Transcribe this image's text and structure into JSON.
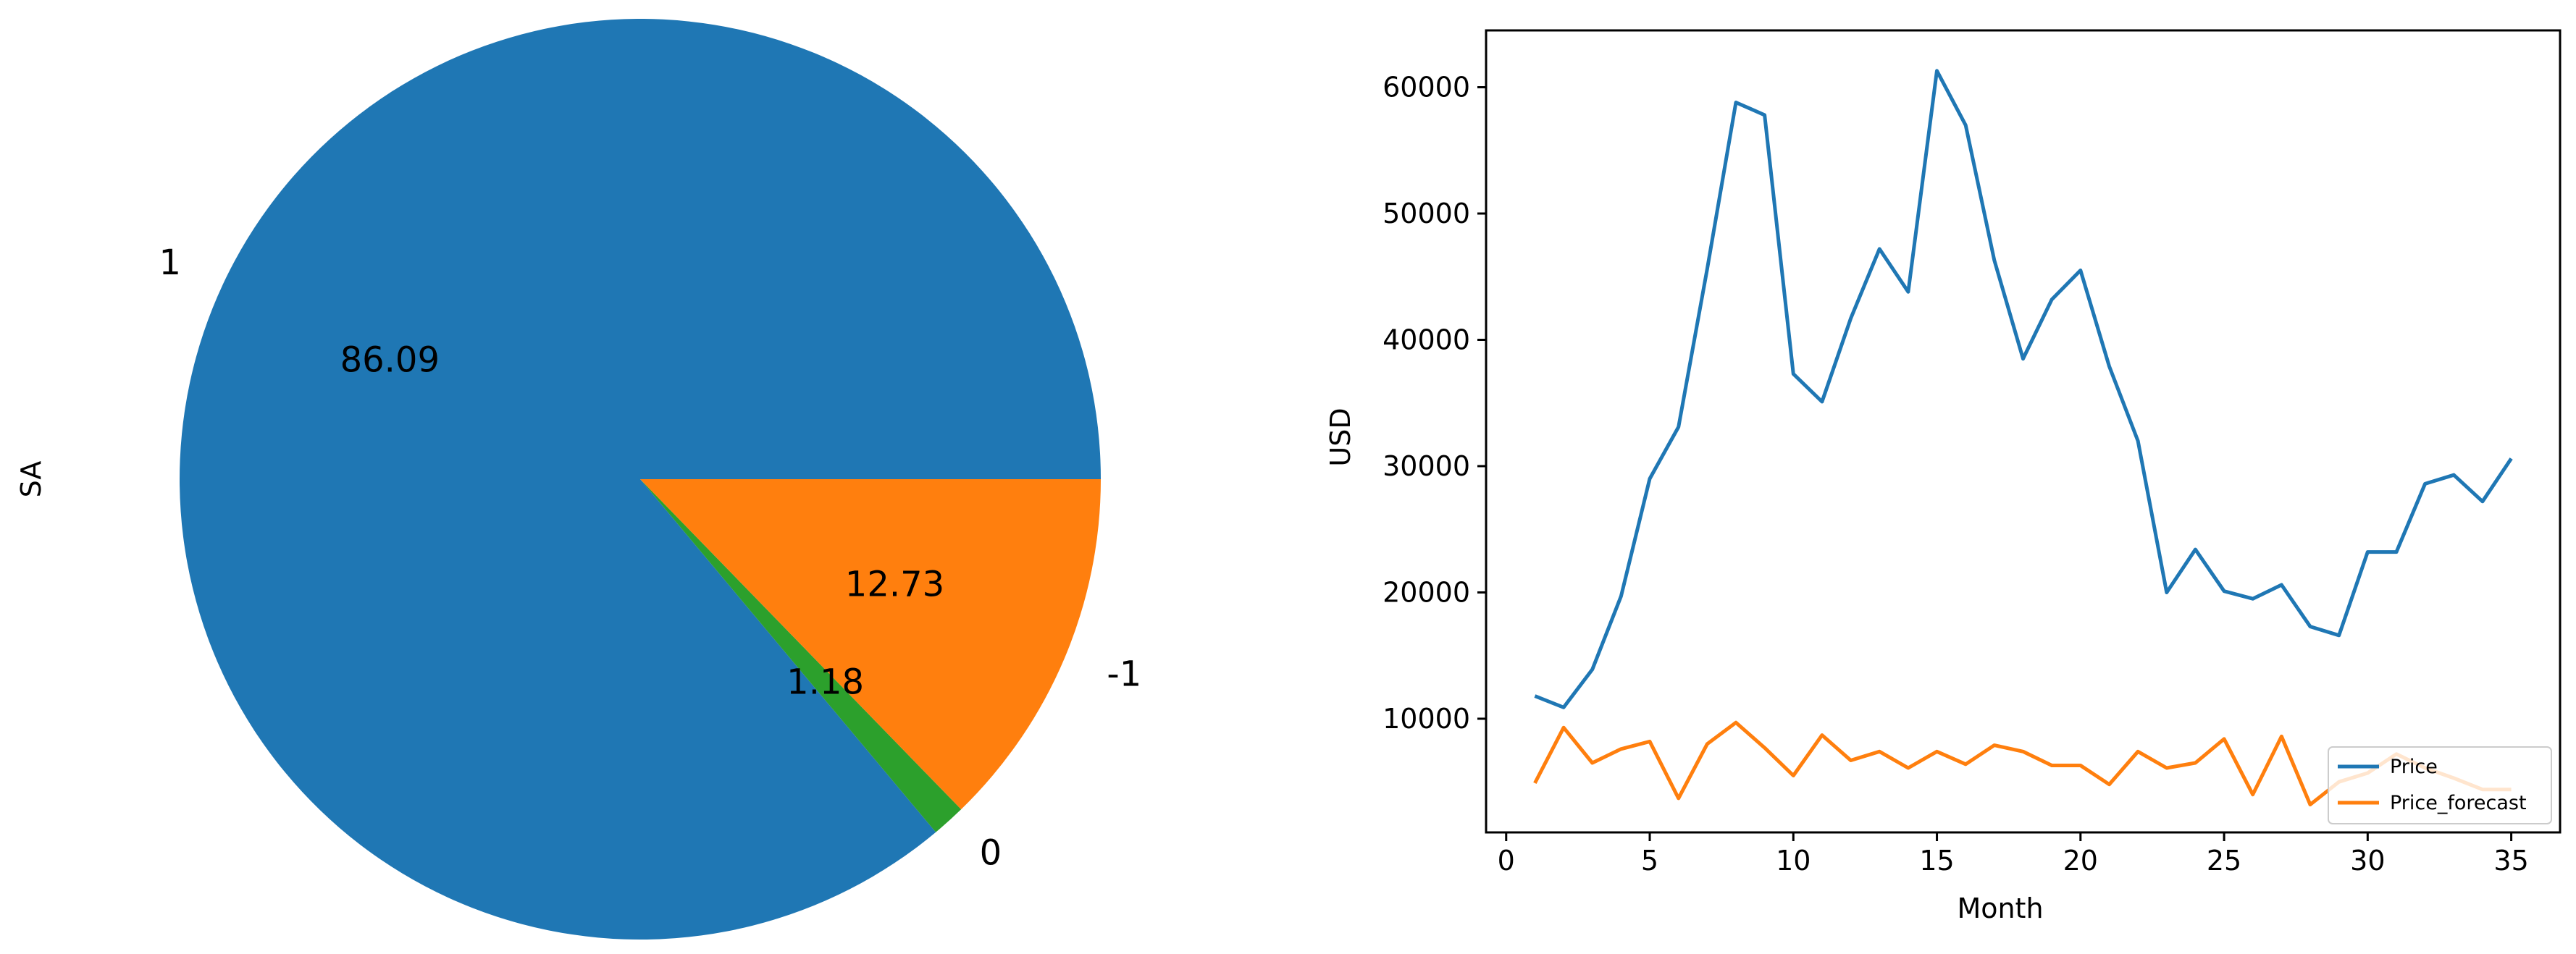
{
  "chart_data": [
    {
      "type": "pie",
      "ylabel": "SA",
      "labels": [
        "1",
        "0",
        "-1"
      ],
      "values": [
        86.09,
        1.18,
        12.73
      ],
      "autopct_labels": [
        "86.09",
        "1.18",
        "12.73"
      ],
      "colors": [
        "#1f77b4",
        "#2ca02c",
        "#ff7f0e"
      ]
    },
    {
      "type": "line",
      "xlabel": "Month",
      "ylabel": "USD",
      "xlim": [
        -0.7,
        36.7
      ],
      "ylim": [
        1000,
        64500
      ],
      "xticks": [
        0,
        5,
        10,
        15,
        20,
        25,
        30,
        35
      ],
      "xtick_labels": [
        "0",
        "5",
        "10",
        "15",
        "20",
        "25",
        "30",
        "35"
      ],
      "yticks": [
        10000,
        20000,
        30000,
        40000,
        50000,
        60000
      ],
      "ytick_labels": [
        "10000",
        "20000",
        "30000",
        "40000",
        "50000",
        "60000"
      ],
      "grid": false,
      "legend_position": "lower-right",
      "x": [
        1,
        2,
        3,
        4,
        5,
        6,
        7,
        8,
        9,
        10,
        11,
        12,
        13,
        14,
        15,
        16,
        17,
        18,
        19,
        20,
        21,
        22,
        23,
        24,
        25,
        26,
        27,
        28,
        29,
        30,
        31,
        32,
        33,
        34,
        35
      ],
      "series": [
        {
          "name": "Price",
          "color": "#1f77b4",
          "values": [
            11800,
            10900,
            13900,
            19700,
            29000,
            33100,
            45600,
            58800,
            57800,
            37300,
            35100,
            41700,
            47200,
            43800,
            61300,
            57000,
            46300,
            38500,
            43200,
            45500,
            37900,
            32000,
            20000,
            23400,
            20100,
            19500,
            20600,
            17300,
            16600,
            23200,
            23200,
            28600,
            29300,
            27200,
            30600
          ]
        },
        {
          "name": "Price_forecast",
          "color": "#ff7f0e",
          "values": [
            4900,
            9300,
            6500,
            7600,
            8200,
            3700,
            8000,
            9700,
            7700,
            5500,
            8700,
            6700,
            7400,
            6100,
            7400,
            6400,
            7900,
            7400,
            6300,
            6300,
            4800,
            7400,
            6100,
            6500,
            8400,
            4000,
            8600,
            3200,
            5000,
            5700,
            7200,
            6100,
            5300,
            4400,
            4400
          ]
        }
      ]
    }
  ]
}
